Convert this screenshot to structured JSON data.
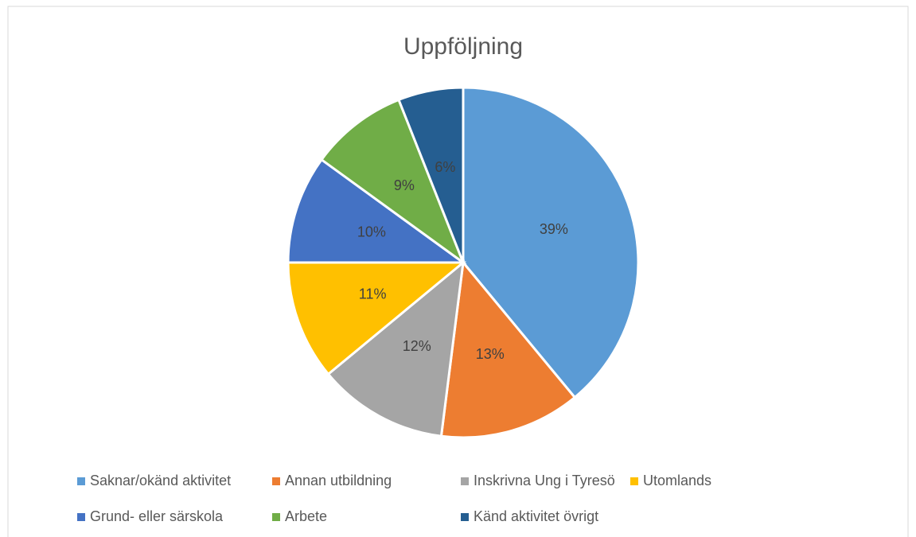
{
  "chart_data": {
    "type": "pie",
    "title": "Uppföljning",
    "categories": [
      "Saknar/okänd aktivitet",
      "Annan utbildning",
      "Inskrivna Ung i Tyresö",
      "Utomlands",
      "Grund- eller särskola",
      "Arbete",
      "Känd aktivitet övrigt"
    ],
    "values": [
      39,
      13,
      12,
      11,
      10,
      9,
      6
    ],
    "value_labels": [
      "39%",
      "13%",
      "12%",
      "11%",
      "10%",
      "9%",
      "6%"
    ],
    "colors": [
      "#5b9bd5",
      "#ed7d31",
      "#a5a5a5",
      "#ffc000",
      "#4472c4",
      "#70ad47",
      "#255e91"
    ],
    "legend": "bottom"
  }
}
